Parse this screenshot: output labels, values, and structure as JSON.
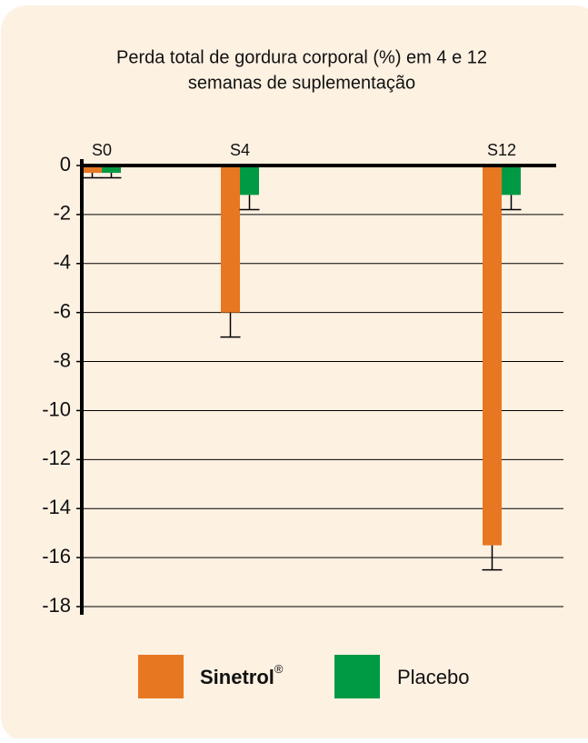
{
  "chart_data": {
    "type": "bar",
    "title": [
      "Perda total de gordura corporal (%) em 4 e 12",
      "semanas de suplementação"
    ],
    "categories": [
      "S0",
      "S4",
      "S12"
    ],
    "series": [
      {
        "name": "Sinetrol",
        "superscript": "®",
        "color": "#e87722",
        "values": [
          -0.3,
          -6.0,
          -15.5
        ],
        "errors": [
          0.2,
          1.0,
          1.0
        ]
      },
      {
        "name": "Placebo",
        "color": "#009a44",
        "values": [
          -0.3,
          -1.2,
          -1.2
        ],
        "errors": [
          0.2,
          0.6,
          0.6
        ]
      }
    ],
    "ylim": [
      0,
      -18
    ],
    "yticks": [
      0,
      -2,
      -4,
      -6,
      -8,
      -10,
      -12,
      -14,
      -16,
      -18
    ],
    "grid": true
  }
}
